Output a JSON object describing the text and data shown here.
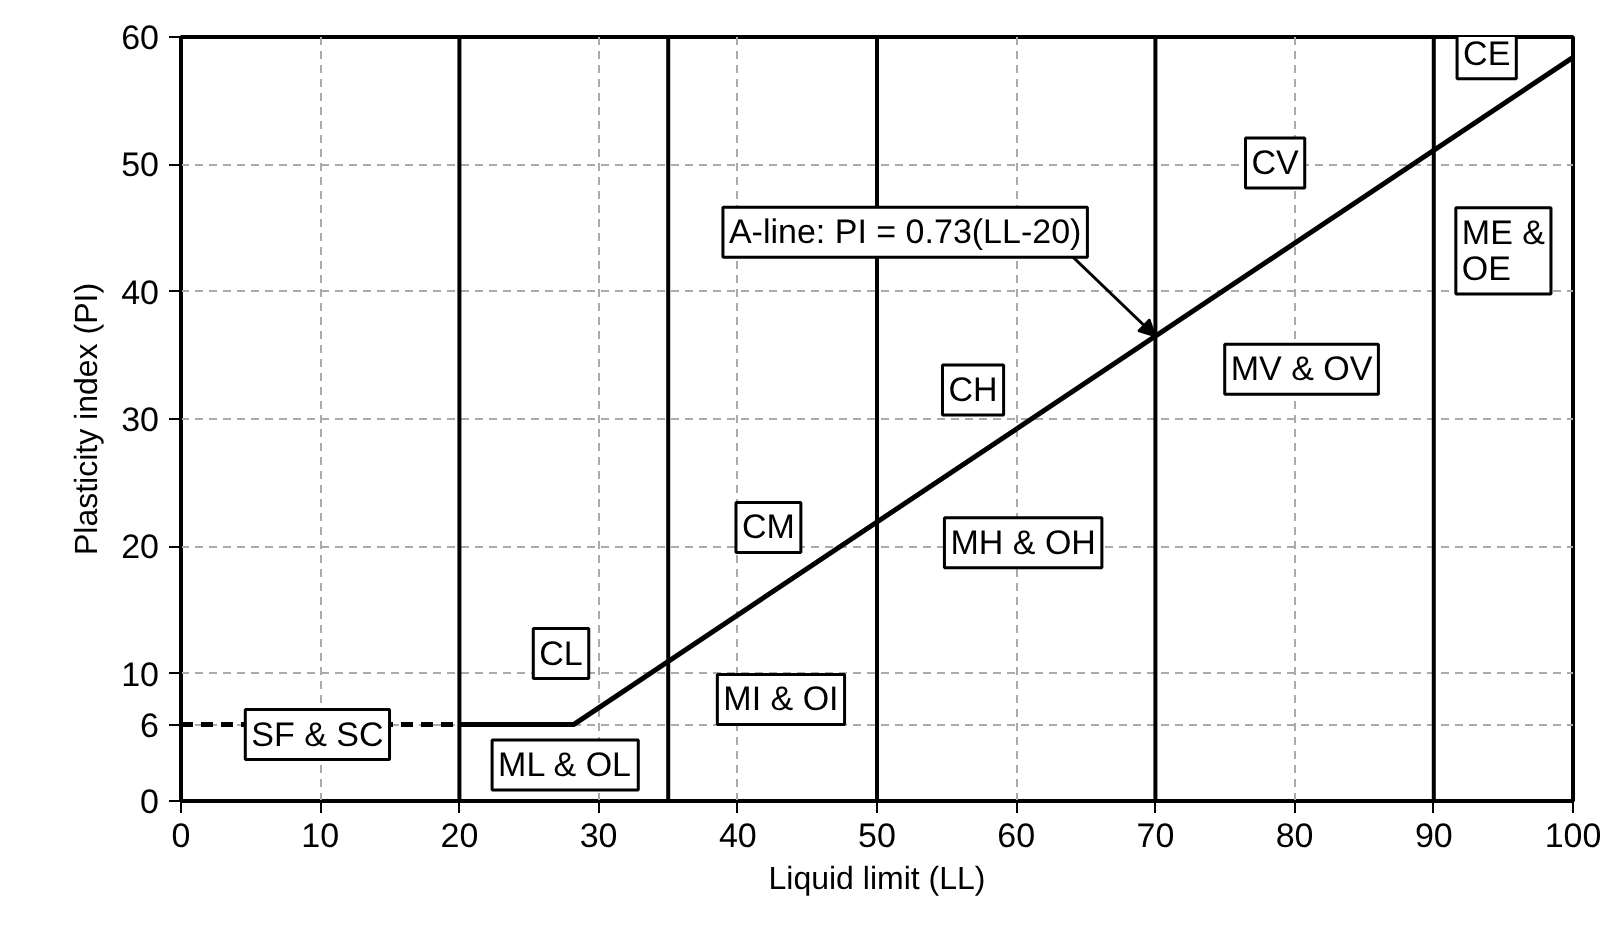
{
  "chart_data": {
    "type": "line",
    "xlabel": "Liquid limit (LL)",
    "ylabel": "Plasticity index (PI)",
    "xlim": [
      0,
      100
    ],
    "ylim": [
      0,
      60
    ],
    "xticks": [
      0,
      10,
      20,
      30,
      40,
      50,
      60,
      70,
      80,
      90,
      100
    ],
    "yticks": [
      0,
      6,
      10,
      20,
      30,
      40,
      50,
      60
    ],
    "grid": true,
    "series": [
      {
        "color": "#000000",
        "x": [
          20,
          28.2,
          100
        ],
        "values": [
          6,
          6,
          58.4
        ],
        "line_style": "solid"
      },
      {
        "color": "#000000",
        "x": [
          0,
          20
        ],
        "values": [
          6,
          6
        ],
        "line_style": "dashed"
      }
    ],
    "ref_lines": [
      {
        "axis": "x",
        "value": 20,
        "color": "#000000"
      },
      {
        "axis": "x",
        "value": 35,
        "color": "#000000"
      },
      {
        "axis": "x",
        "value": 50,
        "color": "#000000"
      },
      {
        "axis": "x",
        "value": 70,
        "color": "#000000"
      },
      {
        "axis": "x",
        "value": 90,
        "color": "#000000"
      }
    ],
    "annotations": [
      {
        "text": "A-line: PI = 0.73(LL-20)",
        "x": 70,
        "y": 36.5
      },
      "SF & SC",
      "ML & OL",
      "CL",
      "CM",
      "MI & OI",
      "CH",
      "MH & OH",
      "CV",
      "MV & OV",
      "CE",
      "ME &\nOE"
    ]
  }
}
